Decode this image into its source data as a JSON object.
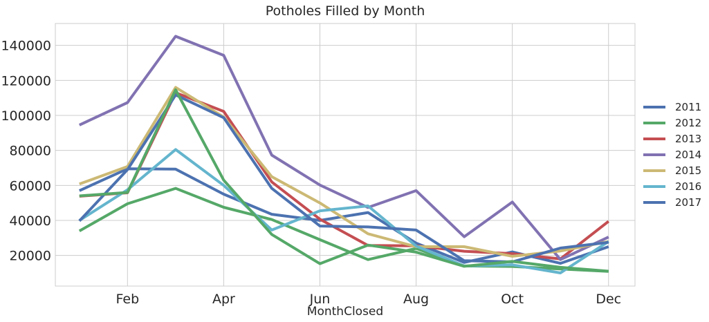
{
  "chart_data": {
    "type": "line",
    "title": "Potholes Filled by Month",
    "xlabel": "MonthClosed",
    "ylabel": "",
    "x": [
      1,
      2,
      3,
      4,
      5,
      6,
      7,
      8,
      9,
      10,
      11,
      12
    ],
    "xtick_values": [
      2,
      4,
      6,
      8,
      10,
      12
    ],
    "xtick_labels": [
      "Feb",
      "Apr",
      "Jun",
      "Aug",
      "Oct",
      "Dec"
    ],
    "xlim": [
      0.5,
      12.55
    ],
    "ylim": [
      2500,
      152500
    ],
    "ytick_values": [
      20000,
      40000,
      60000,
      80000,
      100000,
      120000,
      140000
    ],
    "ytick_labels": [
      "20000",
      "40000",
      "60000",
      "80000",
      "100000",
      "120000",
      "140000"
    ],
    "grid": true,
    "legend_position": "right",
    "series": [
      {
        "name": "2011",
        "color": "#4c72b0",
        "values": [
          57000,
          69500,
          69300,
          55000,
          43500,
          40000,
          44500,
          27000,
          16000,
          22000,
          15500,
          25000
        ]
      },
      {
        "name": "2012",
        "color": "#55a868",
        "values": [
          34000,
          49500,
          58300,
          47500,
          40500,
          29000,
          17600,
          24000,
          14000,
          13700,
          12300,
          10900
        ]
      },
      {
        "name": "2013",
        "color": "#c44e52",
        "values": [
          53800,
          55800,
          113000,
          102300,
          62000,
          40700,
          25700,
          25500,
          22400,
          21000,
          18000,
          39500
        ]
      },
      {
        "name": "2014",
        "color": "#8172b2",
        "values": [
          94500,
          107300,
          145200,
          134300,
          77300,
          60200,
          47400,
          57000,
          30700,
          50500,
          17600,
          30500
        ]
      },
      {
        "name": "2015",
        "color": "#ccb974",
        "values": [
          60800,
          70800,
          116000,
          99000,
          65000,
          50000,
          32400,
          25000,
          25000,
          19500,
          22500,
          28000
        ]
      },
      {
        "name": "2016",
        "color": "#64b5cd",
        "values": [
          40000,
          57500,
          80500,
          60000,
          34500,
          45500,
          48300,
          25400,
          14000,
          14600,
          10000,
          28000
        ]
      },
      {
        "name": "2017",
        "color": "#4c72b0",
        "values": [
          39700,
          69000,
          111700,
          98700,
          58300,
          36800,
          36300,
          34500,
          17000,
          16300,
          24200,
          27500
        ]
      },
      {
        "name": "",
        "color": "#55a868",
        "values": [
          54000,
          56000,
          114600,
          63000,
          32000,
          15300,
          25900,
          21900,
          13800,
          16600,
          13200,
          11000
        ]
      }
    ]
  }
}
